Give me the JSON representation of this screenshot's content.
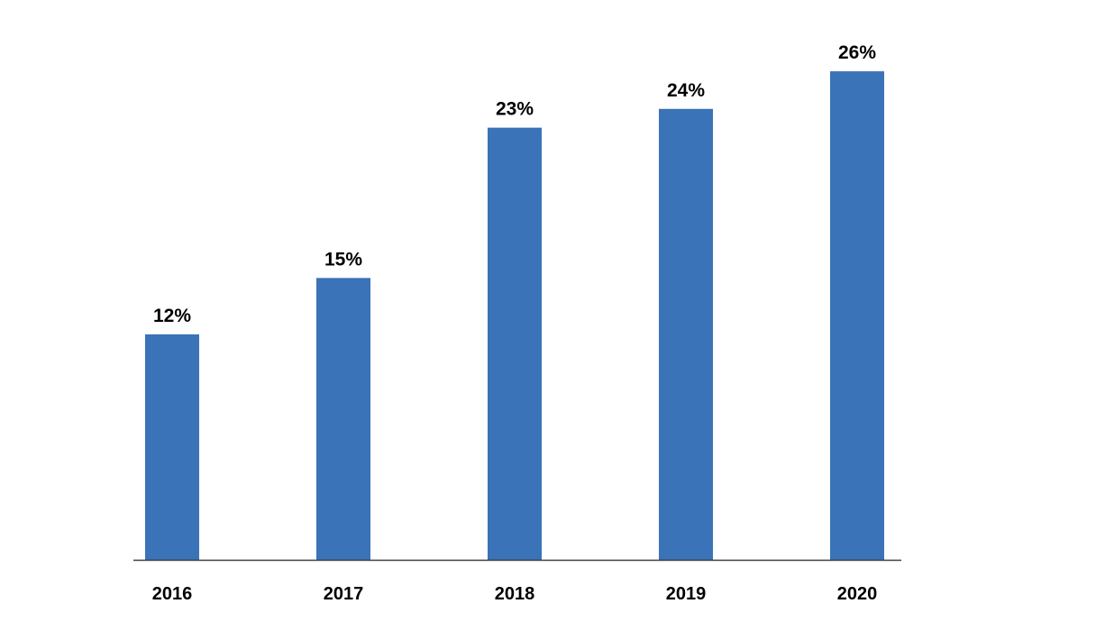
{
  "chart_data": {
    "type": "bar",
    "title": "",
    "xlabel": "",
    "ylabel": "",
    "categories": [
      "2016",
      "2017",
      "2018",
      "2019",
      "2020"
    ],
    "values": [
      12,
      15,
      23,
      24,
      26
    ],
    "data_labels": [
      "12%",
      "15%",
      "23%",
      "24%",
      "26%"
    ],
    "ylim": [
      0,
      27.3
    ],
    "grid": false,
    "legend": "none",
    "bar_color": "#3A73B7",
    "axis_color": "#404040"
  }
}
